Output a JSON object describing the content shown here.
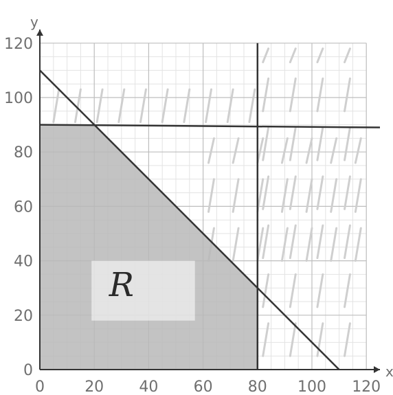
{
  "chart_data": {
    "type": "line",
    "xlabel": "x",
    "ylabel": "y",
    "xlim": [
      0,
      120
    ],
    "ylim": [
      0,
      120
    ],
    "x_ticks": [
      "0",
      "20",
      "40",
      "60",
      "80",
      "100",
      "120"
    ],
    "y_ticks": [
      "0",
      "20",
      "40",
      "60",
      "80",
      "100",
      "120"
    ],
    "grid": true,
    "lines": [
      {
        "points": [
          [
            0,
            110
          ],
          [
            110,
            0
          ]
        ]
      },
      {
        "points": [
          [
            0,
            90
          ],
          [
            125,
            89
          ]
        ]
      },
      {
        "points": [
          [
            80,
            0
          ],
          [
            80,
            120
          ]
        ]
      }
    ],
    "region": {
      "label": "R",
      "vertices": [
        [
          0,
          0
        ],
        [
          0,
          90
        ],
        [
          20,
          90
        ],
        [
          80,
          30
        ],
        [
          80,
          0
        ]
      ],
      "label_at": [
        30,
        27
      ]
    },
    "colors": {
      "grid_major": "#bdbdbd",
      "grid_minor": "#e3e3e3",
      "line": "#333333",
      "region_fill": "#b9b9b9",
      "hatch": "#cfcfcf",
      "tick_text": "#6f6f6f"
    }
  }
}
